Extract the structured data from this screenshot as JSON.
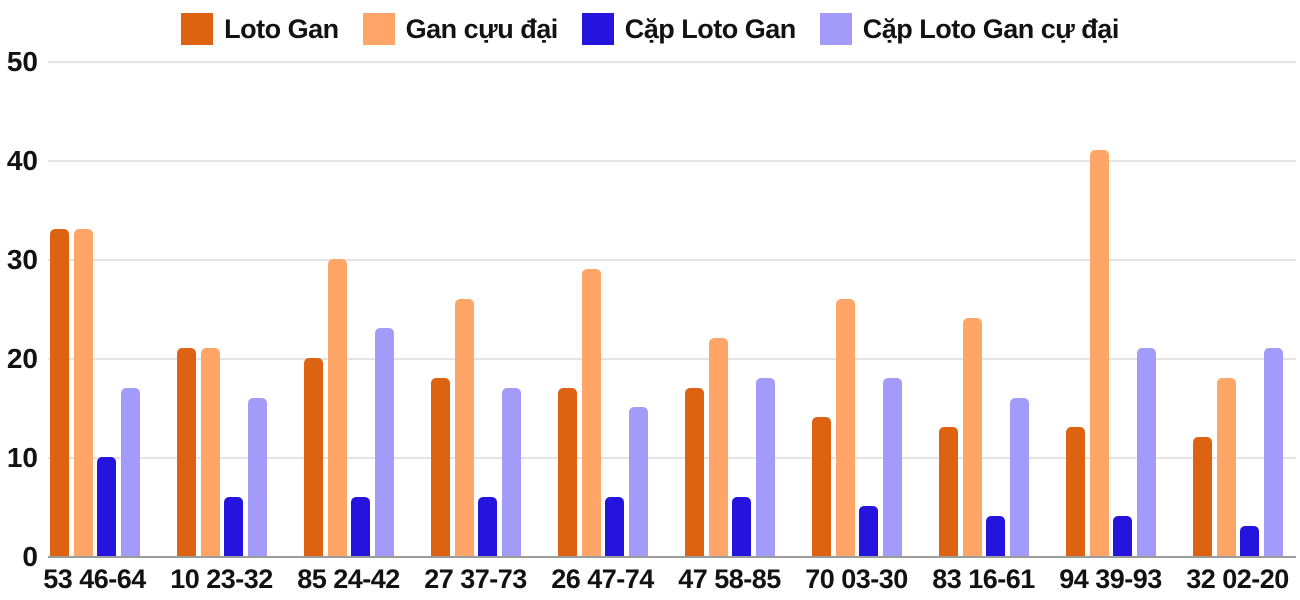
{
  "chart_data": {
    "type": "bar",
    "title": "",
    "xlabel": "",
    "ylabel": "",
    "categories": [
      "53 46-64",
      "10 23-32",
      "85 24-42",
      "27 37-73",
      "26 47-74",
      "47 58-85",
      "70 03-30",
      "83 16-61",
      "94 39-93",
      "32 02-20"
    ],
    "series": [
      {
        "id": "loto-gan",
        "name": "Loto Gan",
        "color": "#dd6313",
        "values": [
          33,
          21,
          20,
          18,
          17,
          17,
          14,
          13,
          13,
          12
        ]
      },
      {
        "id": "gan-cuu-dai",
        "name": "Gan cựu đại",
        "color": "#ffa568",
        "values": [
          33,
          21,
          30,
          26,
          29,
          22,
          26,
          24,
          41,
          18
        ]
      },
      {
        "id": "cap-loto-gan",
        "name": "Cặp Loto Gan",
        "color": "#2414dd",
        "values": [
          10,
          6,
          6,
          6,
          6,
          6,
          5,
          4,
          4,
          3
        ]
      },
      {
        "id": "cap-loto-gan-cu-dai",
        "name": "Cặp Loto Gan cự đại",
        "color": "#a39bf9",
        "values": [
          17,
          16,
          23,
          17,
          15,
          18,
          18,
          16,
          21,
          21
        ]
      }
    ],
    "ylim": [
      0,
      50
    ],
    "yticks": [
      0,
      10,
      20,
      30,
      40,
      50
    ],
    "grid": true,
    "legend_position": "top",
    "gridline_color": "#e4e4e4",
    "axis_line_color": "#9c9c9c",
    "text_color": "#121212"
  }
}
